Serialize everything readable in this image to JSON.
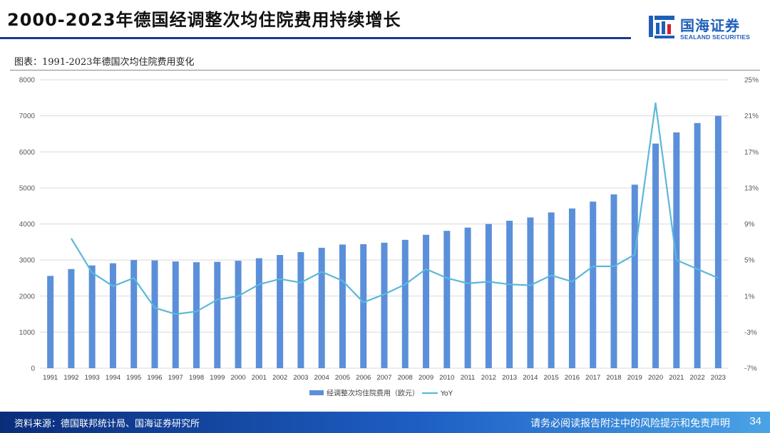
{
  "header": {
    "title": "2000-2023年德国经调整次均住院费用持续增长",
    "logo_cn": "国海证券",
    "logo_en": "SEALAND SECURITIES"
  },
  "caption": "图表：1991-2023年德国次均住院费用变化",
  "footer": {
    "source": "资料来源：德国联邦统计局、国海证券研究所",
    "disclaimer": "请务必阅读报告附注中的风险提示和免责声明",
    "page": "34"
  },
  "colors": {
    "bar": "#5b8fd9",
    "line": "#5bb8d9",
    "title_rule": "#1a3a8c",
    "footer_start": "#0a2d7a",
    "footer_end": "#4aa3e6"
  },
  "chart_data": {
    "type": "bar",
    "categories": [
      "1991",
      "1992",
      "1993",
      "1994",
      "1995",
      "1996",
      "1997",
      "1998",
      "1999",
      "2000",
      "2001",
      "2002",
      "2003",
      "2004",
      "2005",
      "2006",
      "2007",
      "2008",
      "2009",
      "2010",
      "2011",
      "2012",
      "2013",
      "2014",
      "2015",
      "2016",
      "2017",
      "2018",
      "2019",
      "2020",
      "2021",
      "2022",
      "2023"
    ],
    "series": [
      {
        "name": "经调整次均住院费用（欧元）",
        "type": "bar",
        "axis": "left",
        "values": [
          2560,
          2750,
          2850,
          2910,
          3000,
          2990,
          2960,
          2940,
          2950,
          2980,
          3050,
          3140,
          3220,
          3340,
          3430,
          3440,
          3480,
          3560,
          3700,
          3810,
          3900,
          4000,
          4090,
          4180,
          4320,
          4430,
          4620,
          4820,
          5090,
          6230,
          6540,
          6800,
          7000
        ]
      },
      {
        "name": "YoY",
        "type": "line",
        "axis": "right",
        "values": [
          null,
          7.4,
          3.6,
          2.1,
          3.0,
          -0.3,
          -1.0,
          -0.7,
          0.6,
          1.0,
          2.3,
          2.9,
          2.5,
          3.7,
          2.7,
          0.3,
          1.2,
          2.3,
          4.0,
          3.0,
          2.4,
          2.6,
          2.3,
          2.2,
          3.3,
          2.6,
          4.3,
          4.3,
          5.6,
          22.4,
          5.0,
          4.0,
          3.0
        ]
      }
    ],
    "y_left": {
      "ylim": [
        0,
        8000
      ],
      "ticks": [
        "0",
        "1000",
        "2000",
        "3000",
        "4000",
        "5000",
        "6000",
        "7000",
        "8000"
      ]
    },
    "y_right": {
      "ylim": [
        -7,
        25
      ],
      "ticks": [
        "-7%",
        "-3%",
        "1%",
        "5%",
        "9%",
        "13%",
        "17%",
        "21%",
        "25%"
      ]
    },
    "grid": true,
    "legend_position": "bottom"
  }
}
